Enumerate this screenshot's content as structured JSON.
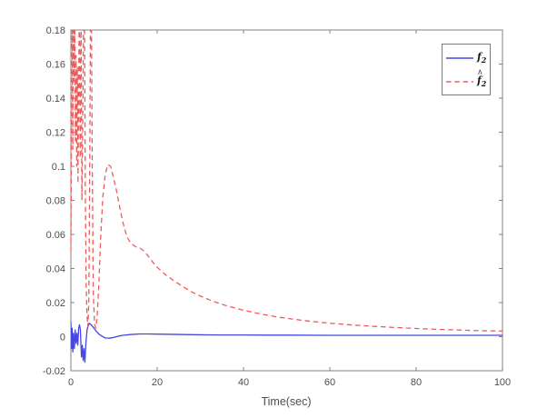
{
  "figure": {
    "background": "#ffffff",
    "axis_color": "#808080",
    "tick_label_color": "#4d4d4d"
  },
  "chart_data": {
    "type": "line",
    "title": "",
    "xlabel": "Time(sec)",
    "ylabel": "",
    "xlim": [
      0,
      100
    ],
    "ylim": [
      -0.02,
      0.18
    ],
    "xticks": [
      0,
      20,
      40,
      60,
      80,
      100
    ],
    "xtick_labels": [
      "0",
      "20",
      "40",
      "60",
      "80",
      "100"
    ],
    "yticks": [
      -0.02,
      0,
      0.02,
      0.04,
      0.06,
      0.08,
      0.1,
      0.12,
      0.14,
      0.16,
      0.18
    ],
    "ytick_labels": [
      "-0.02",
      "0",
      "0.02",
      "0.04",
      "0.06",
      "0.08",
      "0.1",
      "0.12",
      "0.14",
      "0.16",
      "0.18"
    ],
    "grid": false,
    "box": true,
    "legend": {
      "position": "upper-right",
      "entries": [
        {
          "name": "f_2",
          "base": "f",
          "sub": "2",
          "hat": false,
          "hat_glyph": "",
          "line_style": "solid",
          "color": "#4646e0"
        },
        {
          "name": "f_2_hat",
          "base": "f",
          "sub": "2",
          "hat": true,
          "hat_glyph": "∧",
          "line_style": "dashed",
          "color": "#f05a5a"
        }
      ]
    },
    "series": [
      {
        "name": "f_2",
        "color": "#4646e0",
        "style": "solid",
        "points": [
          [
            0,
            0.009
          ],
          [
            0.15,
            -0.007
          ],
          [
            0.3,
            0.005
          ],
          [
            0.45,
            -0.009
          ],
          [
            0.6,
            0.002
          ],
          [
            0.8,
            -0.007
          ],
          [
            1.0,
            0.004
          ],
          [
            1.2,
            -0.004
          ],
          [
            1.4,
            0.002
          ],
          [
            1.6,
            -0.005
          ],
          [
            1.8,
            0.005
          ],
          [
            2.0,
            0.007
          ],
          [
            2.2,
            0.004
          ],
          [
            2.45,
            -0.012
          ],
          [
            2.65,
            -0.005
          ],
          [
            2.85,
            -0.014
          ],
          [
            3.05,
            -0.007
          ],
          [
            3.25,
            -0.015
          ],
          [
            3.5,
            -0.003
          ],
          [
            3.75,
            0.004
          ],
          [
            4.0,
            0.0065
          ],
          [
            4.3,
            0.0078
          ],
          [
            4.7,
            0.007
          ],
          [
            5.2,
            0.0055
          ],
          [
            5.8,
            0.0035
          ],
          [
            6.5,
            0.0015
          ],
          [
            7.2,
            0.0003
          ],
          [
            8.0,
            -0.0008
          ],
          [
            9.0,
            -0.0009
          ],
          [
            10,
            -0.0004
          ],
          [
            11,
            0.0003
          ],
          [
            12,
            0.0008
          ],
          [
            14,
            0.0013
          ],
          [
            16,
            0.0016
          ],
          [
            18,
            0.0016
          ],
          [
            20,
            0.0015
          ],
          [
            25,
            0.0013
          ],
          [
            30,
            0.0011
          ],
          [
            35,
            0.001
          ],
          [
            40,
            0.001
          ],
          [
            45,
            0.0009
          ],
          [
            50,
            0.0009
          ],
          [
            60,
            0.0008
          ],
          [
            70,
            0.0008
          ],
          [
            80,
            0.0008
          ],
          [
            90,
            0.0008
          ],
          [
            100,
            0.0008
          ]
        ]
      },
      {
        "name": "f_2_hat",
        "color": "#f05a5a",
        "style": "dashed",
        "points": [
          [
            0,
            0.05
          ],
          [
            0.15,
            0.13
          ],
          [
            0.3,
            0.192
          ],
          [
            0.45,
            0.11
          ],
          [
            0.6,
            0.192
          ],
          [
            0.75,
            0.15
          ],
          [
            0.9,
            0.192
          ],
          [
            1.05,
            0.115
          ],
          [
            1.2,
            0.165
          ],
          [
            1.35,
            0.1
          ],
          [
            1.5,
            0.158
          ],
          [
            1.65,
            0.09
          ],
          [
            1.8,
            0.148
          ],
          [
            1.95,
            0.192
          ],
          [
            2.15,
            0.105
          ],
          [
            2.35,
            0.192
          ],
          [
            2.55,
            0.08
          ],
          [
            2.75,
            0.125
          ],
          [
            2.95,
            0.192
          ],
          [
            3.15,
            0.192
          ],
          [
            3.35,
            0.085
          ],
          [
            3.55,
            0.03
          ],
          [
            3.75,
            0.012
          ],
          [
            3.95,
            0.006
          ],
          [
            4.15,
            0.02
          ],
          [
            4.35,
            0.09
          ],
          [
            4.55,
            0.192
          ],
          [
            4.75,
            0.192
          ],
          [
            4.95,
            0.1
          ],
          [
            5.2,
            0.025
          ],
          [
            5.5,
            0.007
          ],
          [
            5.8,
            0.005
          ],
          [
            6.1,
            0.012
          ],
          [
            6.5,
            0.032
          ],
          [
            6.9,
            0.058
          ],
          [
            7.4,
            0.082
          ],
          [
            8.0,
            0.096
          ],
          [
            8.6,
            0.101
          ],
          [
            9.2,
            0.1
          ],
          [
            9.8,
            0.094
          ],
          [
            10.5,
            0.0865
          ],
          [
            11.2,
            0.0775
          ],
          [
            12,
            0.0675
          ],
          [
            13,
            0.0585
          ],
          [
            14,
            0.0545
          ],
          [
            15,
            0.0528
          ],
          [
            16,
            0.052
          ],
          [
            17,
            0.0502
          ],
          [
            18,
            0.047
          ],
          [
            19,
            0.0437
          ],
          [
            20,
            0.0407
          ],
          [
            22,
            0.0362
          ],
          [
            24,
            0.0326
          ],
          [
            26,
            0.0293
          ],
          [
            28,
            0.0263
          ],
          [
            30,
            0.0238
          ],
          [
            33,
            0.0207
          ],
          [
            36,
            0.0182
          ],
          [
            40,
            0.0155
          ],
          [
            44,
            0.0133
          ],
          [
            48,
            0.0115
          ],
          [
            52,
            0.0101
          ],
          [
            56,
            0.0089
          ],
          [
            60,
            0.0079
          ],
          [
            65,
            0.0069
          ],
          [
            70,
            0.0061
          ],
          [
            75,
            0.0054
          ],
          [
            80,
            0.0048
          ],
          [
            85,
            0.0043
          ],
          [
            90,
            0.0039
          ],
          [
            95,
            0.0035
          ],
          [
            100,
            0.0033
          ]
        ]
      }
    ]
  }
}
